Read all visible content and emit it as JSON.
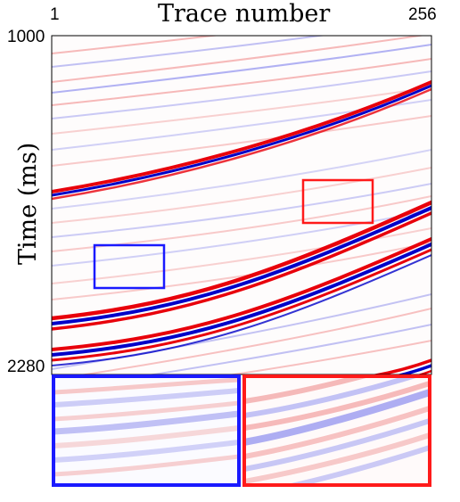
{
  "figure": {
    "title": "Trace number",
    "ylabel": "Time (ms)",
    "x_tick_left": "1",
    "x_tick_right": "256",
    "y_tick_top": "1000",
    "y_tick_bottom": "2280"
  },
  "colors": {
    "positive": "#e8000b",
    "negative": "#0000c8",
    "box_blue": "#1a1aff",
    "box_red": "#ff1a1a"
  },
  "panels": {
    "main": "seismic-section",
    "zoom_blue": "blue-zoom-inset",
    "zoom_red": "red-zoom-inset"
  }
}
